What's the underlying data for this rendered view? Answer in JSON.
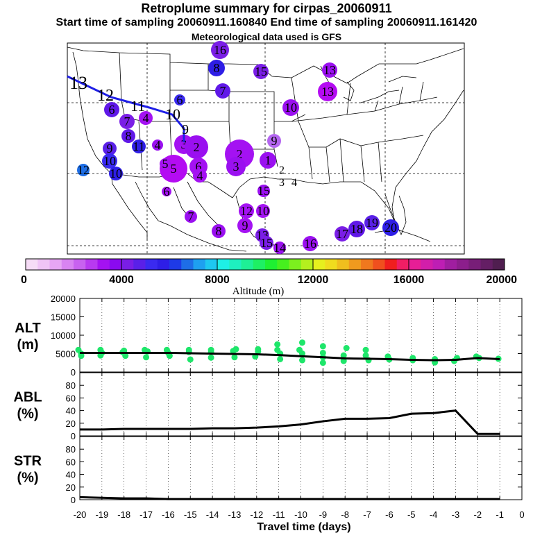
{
  "header": {
    "title": "Retroplume summary for cirpas_20060911",
    "sampling_line": "Start time of sampling 20060911.160840     End time of sampling 20060911.161420",
    "met_line": "Meteorological data used is GFS"
  },
  "map": {
    "trajectory_labels": [
      "13",
      "12",
      "11",
      "10",
      "9"
    ],
    "clusters": [
      {
        "label": "16",
        "color": "#7a1ee6"
      },
      {
        "label": "8",
        "color": "#2e1ee6"
      },
      {
        "label": "15",
        "color": "#7a1ee6"
      },
      {
        "label": "13",
        "color": "#9a10f0"
      },
      {
        "label": "13",
        "color": "#b40cf2"
      },
      {
        "label": "6",
        "color": "#3a2af0"
      },
      {
        "label": "7",
        "color": "#6018e8"
      },
      {
        "label": "10",
        "color": "#9a10f0"
      },
      {
        "label": "6",
        "color": "#6018e8"
      },
      {
        "label": "7",
        "color": "#7a1ee6"
      },
      {
        "label": "4",
        "color": "#a412f2"
      },
      {
        "label": "8",
        "color": "#6018e8"
      },
      {
        "label": "11",
        "color": "#2e1ee6"
      },
      {
        "label": "4",
        "color": "#9a10f0"
      },
      {
        "label": "9",
        "color": "#5a20e8"
      },
      {
        "label": "10",
        "color": "#3a2af0"
      },
      {
        "label": "10",
        "color": "#2e1ee6"
      },
      {
        "label": "12",
        "color": "#1e6ee6"
      },
      {
        "label": "3",
        "color": "#a412f2"
      },
      {
        "label": "2",
        "color": "#9a10f0"
      },
      {
        "label": "5",
        "color": "#b40cf2"
      },
      {
        "label": "6",
        "color": "#a412f2"
      },
      {
        "label": "4",
        "color": "#a412f2"
      },
      {
        "label": "2",
        "color": "#a412f2"
      },
      {
        "label": "3",
        "color": "#9a10f0"
      },
      {
        "label": "1",
        "color": "#9a10f0"
      },
      {
        "label": "9",
        "color": "#b466f0"
      },
      {
        "label": "5",
        "color": "#a412f2"
      },
      {
        "label": "7",
        "color": "#9a10f0"
      },
      {
        "label": "8",
        "color": "#9a10f0"
      },
      {
        "label": "12",
        "color": "#a412f2"
      },
      {
        "label": "10",
        "color": "#a412f2"
      },
      {
        "label": "9",
        "color": "#a412f2"
      },
      {
        "label": "13",
        "color": "#7a1ee6"
      },
      {
        "label": "15",
        "color": "#7a1ee6"
      },
      {
        "label": "14",
        "color": "#9a10f0"
      },
      {
        "label": "16",
        "color": "#9a10f0"
      },
      {
        "label": "17",
        "color": "#7a1ee6"
      },
      {
        "label": "18",
        "color": "#6018e8"
      },
      {
        "label": "19",
        "color": "#5a20e8"
      },
      {
        "label": "20",
        "color": "#2e1ee6"
      },
      {
        "label": "15",
        "color": "#9a10f0"
      },
      {
        "label": "6",
        "color": "#a412f2"
      }
    ],
    "plain_labels": [
      "2",
      "3",
      "4"
    ]
  },
  "colorbar": {
    "ticks": [
      "0",
      "4000",
      "8000",
      "12000",
      "16000",
      "20000"
    ],
    "label": "Altitude (m)",
    "colors": [
      "#f6dcf6",
      "#f0c4f6",
      "#e6a6f4",
      "#d884f2",
      "#c862f0",
      "#b83af0",
      "#a412f2",
      "#8a0af0",
      "#7a1ee6",
      "#5a20e8",
      "#3a2af0",
      "#2e1ee6",
      "#1e3ae6",
      "#1e6ee6",
      "#1ea0f0",
      "#1ec8f0",
      "#1ef0e6",
      "#1ef0c0",
      "#1ef096",
      "#1ef064",
      "#1ef032",
      "#46f01e",
      "#7cf01e",
      "#b4f01e",
      "#e6f01e",
      "#f0dc1e",
      "#f0be1e",
      "#f09a1e",
      "#f0781e",
      "#f0501e",
      "#f01e1e",
      "#f01e64",
      "#e61e96",
      "#d21eaa",
      "#be1eb4",
      "#a01ea0",
      "#8c1e8c",
      "#781e78",
      "#641e64",
      "#501e50"
    ]
  },
  "chart_data": [
    {
      "type": "scatter",
      "panel_label": "ALT\n(m)",
      "label_lines": [
        "ALT",
        "(m)"
      ],
      "x": [
        -20,
        -19,
        -18,
        -17,
        -16,
        -15,
        -14,
        -13,
        -12,
        -11,
        -10,
        -9,
        -8,
        -7,
        -6,
        -5,
        -4,
        -3,
        -2,
        -1
      ],
      "mean_line": [
        5200,
        5200,
        5200,
        5200,
        5200,
        5100,
        5000,
        4900,
        4800,
        4600,
        4300,
        4000,
        3700,
        3600,
        3500,
        3300,
        3200,
        3300,
        3800,
        3500
      ],
      "points": [
        [
          -20,
          6000
        ],
        [
          -20,
          5000
        ],
        [
          -20,
          4400
        ],
        [
          -19,
          6000
        ],
        [
          -19,
          5200
        ],
        [
          -19,
          4500
        ],
        [
          -18,
          5800
        ],
        [
          -18,
          5400
        ],
        [
          -18,
          4400
        ],
        [
          -17,
          6000
        ],
        [
          -17,
          5600
        ],
        [
          -17,
          4000
        ],
        [
          -16,
          6000
        ],
        [
          -16,
          5200
        ],
        [
          -16,
          4400
        ],
        [
          -15,
          6000
        ],
        [
          -15,
          5400
        ],
        [
          -15,
          3400
        ],
        [
          -14,
          6000
        ],
        [
          -14,
          5400
        ],
        [
          -14,
          3900
        ],
        [
          -13,
          6200
        ],
        [
          -13,
          5700
        ],
        [
          -13,
          4000
        ],
        [
          -12,
          6200
        ],
        [
          -12,
          5600
        ],
        [
          -12,
          4200
        ],
        [
          -11,
          7500
        ],
        [
          -11,
          6000
        ],
        [
          -11,
          5000
        ],
        [
          -11,
          3500
        ],
        [
          -10,
          8000
        ],
        [
          -10,
          6000
        ],
        [
          -10,
          5000
        ],
        [
          -10,
          3200
        ],
        [
          -9,
          7000
        ],
        [
          -9,
          5200
        ],
        [
          -9,
          4000
        ],
        [
          -9,
          2500
        ],
        [
          -8,
          6500
        ],
        [
          -8,
          4500
        ],
        [
          -8,
          3000
        ],
        [
          -7,
          6000
        ],
        [
          -7,
          4500
        ],
        [
          -7,
          3200
        ],
        [
          -6,
          4200
        ],
        [
          -6,
          3400
        ],
        [
          -5,
          3800
        ],
        [
          -5,
          3200
        ],
        [
          -4,
          3500
        ],
        [
          -4,
          2600
        ],
        [
          -3,
          3800
        ],
        [
          -3,
          3000
        ],
        [
          -2,
          4200
        ],
        [
          -2,
          3800
        ],
        [
          -1,
          3600
        ]
      ],
      "ylim": [
        0,
        20000
      ],
      "yticks": [
        "0",
        "5000",
        "10000",
        "15000",
        "20000"
      ]
    },
    {
      "type": "line",
      "panel_label": "ABL\n(%)",
      "label_lines": [
        "ABL",
        "(%)"
      ],
      "x": [
        -20,
        -19,
        -18,
        -17,
        -16,
        -15,
        -14,
        -13,
        -12,
        -11,
        -10,
        -9,
        -8,
        -7,
        -6,
        -5,
        -4,
        -3,
        -2,
        -1
      ],
      "values": [
        10,
        10,
        11,
        11,
        11,
        11,
        12,
        12,
        13,
        15,
        18,
        23,
        27,
        27,
        28,
        35,
        36,
        40,
        3,
        3
      ],
      "ylim": [
        0,
        100
      ],
      "yticks": [
        "0",
        "20",
        "40",
        "60",
        "80"
      ]
    },
    {
      "type": "line",
      "panel_label": "STR\n(%)",
      "label_lines": [
        "STR",
        "(%)"
      ],
      "x": [
        -20,
        -19,
        -18,
        -17,
        -16,
        -15,
        -14,
        -13,
        -12,
        -11,
        -10,
        -9,
        -8,
        -7,
        -6,
        -5,
        -4,
        -3,
        -2,
        -1
      ],
      "values": [
        4,
        3,
        2,
        2,
        1,
        1,
        1,
        1,
        1,
        1,
        1,
        1,
        1,
        1,
        1,
        1,
        1,
        1,
        1,
        1
      ],
      "ylim": [
        0,
        100
      ],
      "yticks": [
        "0",
        "20",
        "40",
        "60",
        "80"
      ]
    }
  ],
  "xaxis": {
    "ticks": [
      "-20",
      "-19",
      "-18",
      "-17",
      "-16",
      "-15",
      "-14",
      "-13",
      "-12",
      "-11",
      "-10",
      "-9",
      "-8",
      "-7",
      "-6",
      "-5",
      "-4",
      "-3",
      "-2",
      "-1",
      "0"
    ],
    "label": "Travel time (days)"
  }
}
